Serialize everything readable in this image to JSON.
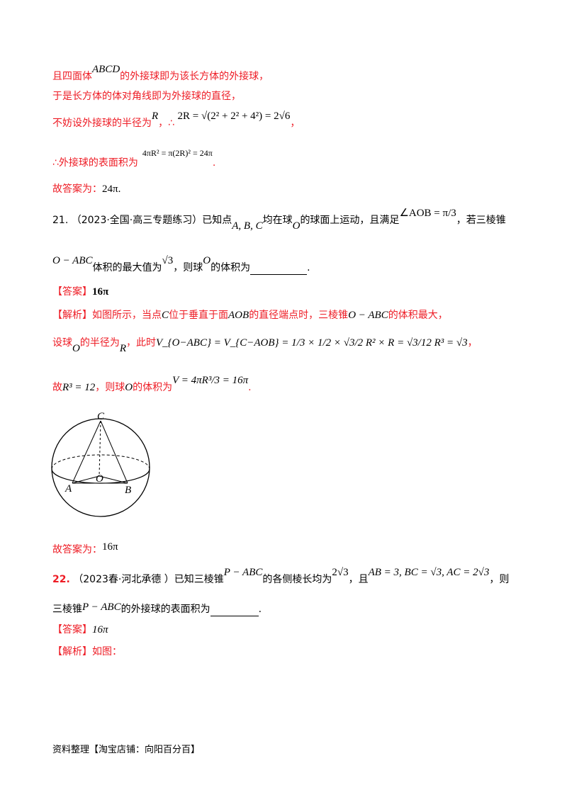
{
  "solution_prev": {
    "line1": [
      "且四面体",
      "ABCD",
      "的外接球即为该长方体的外接球，"
    ],
    "line2": "于是长方体的体对角线即为外接球的直径，",
    "line3": [
      "不妨设外接球的半径为",
      "R",
      "，∴",
      "2R = √(2² + 2² + 4²) = 2√6",
      "，"
    ],
    "line4": [
      "∴外接球的表面积为",
      "4πR² = π(2R)² = 24π",
      "."
    ],
    "final": [
      "故答案为：",
      "24π."
    ]
  },
  "q21": {
    "number": "21.",
    "source": "（2023·全国·高三专题练习）",
    "line1": [
      "已知点",
      "A, B, C",
      "均在球",
      "O",
      "的球面上运动，且满足",
      "∠AOB = π/3",
      "，若三棱锥"
    ],
    "line2": [
      "O − ABC",
      "体积的最大值为",
      "√3",
      "，则球",
      "O",
      "的体积为",
      "."
    ],
    "answer_label": "【答案】",
    "answer": "16π",
    "analysis_label": "【解析】",
    "analysis1": [
      "如图所示，当点",
      "C",
      "位于垂直于面",
      "AOB",
      "的直径端点时，三棱锥",
      "O − ABC",
      "的体积最大，"
    ],
    "analysis2": [
      "设球",
      "O",
      "的半径为",
      "R",
      "，此时",
      "V_{O−ABC} = V_{C−AOB} = 1/3 × 1/2 × √3/2 R² × R = √3/12 R³ = √3",
      "，"
    ],
    "analysis3": [
      "故",
      "R³ = 12",
      "，则球",
      "O",
      "的体积为",
      "V = 4πR³/3 = 16π",
      "."
    ],
    "figure_labels": {
      "C": "C",
      "O": "O",
      "A": "A",
      "B": "B"
    },
    "final": [
      "故答案为：",
      "16π"
    ]
  },
  "q22": {
    "number": "22.",
    "source": "（2023春·河北承德 ）",
    "line1": [
      "已知三棱锥",
      "P − ABC",
      "的各侧棱长均为",
      "2√3",
      "，且",
      "AB = 3, BC = √3, AC = 2√3",
      "，则"
    ],
    "line2": [
      "三棱锥",
      "P − ABC",
      "的外接球的表面积为",
      "."
    ],
    "answer_label": "【答案】",
    "answer": "16π",
    "analysis_label": "【解析】",
    "analysis": "如图："
  },
  "footer": "资料整理【淘宝店铺：向阳百分百】",
  "colors": {
    "red": "#ee1c25",
    "text": "#000000"
  }
}
